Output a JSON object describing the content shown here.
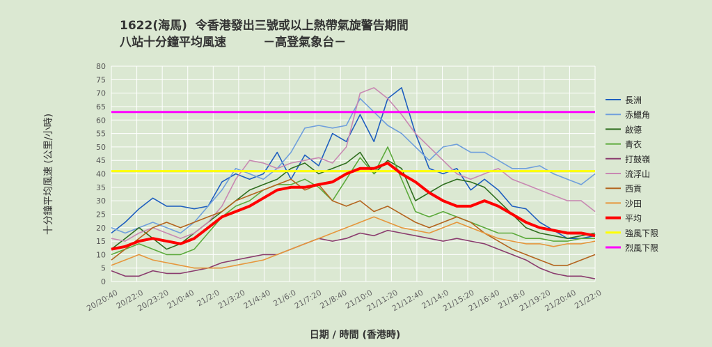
{
  "chart_data": {
    "type": "line",
    "title": "1622(海馬)  令香港發出三號或以上熱帶氣旋警告期間",
    "subtitle": "八站十分鐘平均風速         －高登氣象台－",
    "xlabel": "日期 / 時間 (香港時)",
    "ylabel": "十分鐘平均風速 (公里/小時)",
    "ylim": [
      0,
      80
    ],
    "yticks": [
      0,
      5,
      10,
      15,
      20,
      25,
      30,
      35,
      40,
      45,
      50,
      55,
      60,
      65,
      70,
      75,
      80
    ],
    "xticks": [
      "20/20:40",
      "20/22:0",
      "20/23:20",
      "21/0:40",
      "21/2:0",
      "21/3:20",
      "21/4:40",
      "21/6:0",
      "21/7:20",
      "21/8:40",
      "21/10:0",
      "21/11:20",
      "21/12:40",
      "21/14:0",
      "21/15:20",
      "21/16:40",
      "21/18:0",
      "21/19:20",
      "21/20:40",
      "21/22:0"
    ],
    "grid": true,
    "legend": "right",
    "series": [
      {
        "name": "長洲",
        "color": "#1f5fbf",
        "values": [
          18,
          22,
          27,
          31,
          28,
          28,
          27,
          28,
          37,
          40,
          38,
          40,
          48,
          38,
          47,
          43,
          55,
          52,
          62,
          52,
          68,
          72,
          55,
          42,
          40,
          42,
          34,
          38,
          34,
          28,
          27,
          22,
          19,
          16,
          16,
          17
        ]
      },
      {
        "name": "赤鱲角",
        "color": "#6f9fdc",
        "values": [
          20,
          18,
          20,
          22,
          20,
          18,
          22,
          28,
          34,
          42,
          40,
          38,
          42,
          48,
          57,
          58,
          57,
          58,
          68,
          63,
          58,
          55,
          50,
          45,
          50,
          51,
          48,
          48,
          45,
          42,
          42,
          43,
          40,
          38,
          36,
          40
        ]
      },
      {
        "name": "啟德",
        "color": "#2f6e1f",
        "values": [
          12,
          16,
          20,
          16,
          12,
          14,
          18,
          22,
          26,
          30,
          34,
          36,
          38,
          42,
          44,
          40,
          42,
          44,
          48,
          40,
          45,
          42,
          30,
          33,
          36,
          38,
          37,
          35,
          30,
          25,
          20,
          18,
          17,
          16,
          17,
          18
        ]
      },
      {
        "name": "青衣",
        "color": "#5caa3c",
        "values": [
          10,
          12,
          14,
          12,
          10,
          10,
          12,
          18,
          24,
          28,
          30,
          34,
          36,
          36,
          38,
          35,
          30,
          38,
          46,
          40,
          50,
          38,
          26,
          24,
          26,
          24,
          22,
          20,
          18,
          18,
          16,
          16,
          15,
          15,
          16,
          16
        ]
      },
      {
        "name": "打鼓嶺",
        "color": "#8a3c6e",
        "values": [
          4,
          2,
          2,
          4,
          3,
          3,
          4,
          5,
          7,
          8,
          9,
          10,
          10,
          12,
          14,
          16,
          15,
          16,
          18,
          17,
          19,
          18,
          17,
          16,
          15,
          16,
          15,
          14,
          12,
          10,
          8,
          5,
          3,
          2,
          2,
          1
        ]
      },
      {
        "name": "流浮山",
        "color": "#c888b2",
        "values": [
          16,
          15,
          18,
          20,
          18,
          16,
          18,
          22,
          28,
          38,
          45,
          44,
          42,
          44,
          45,
          46,
          44,
          50,
          70,
          72,
          68,
          62,
          55,
          50,
          45,
          40,
          38,
          40,
          42,
          38,
          36,
          34,
          32,
          30,
          30,
          26
        ]
      },
      {
        "name": "西貢",
        "color": "#b4641e",
        "values": [
          8,
          12,
          16,
          20,
          22,
          20,
          22,
          24,
          26,
          30,
          32,
          34,
          36,
          38,
          34,
          36,
          30,
          28,
          30,
          26,
          28,
          25,
          22,
          20,
          22,
          24,
          22,
          18,
          15,
          12,
          10,
          8,
          6,
          6,
          8,
          10
        ]
      },
      {
        "name": "沙田",
        "color": "#e6963c",
        "values": [
          6,
          8,
          10,
          8,
          7,
          6,
          5,
          5,
          5,
          6,
          7,
          8,
          10,
          12,
          14,
          16,
          18,
          20,
          22,
          24,
          22,
          20,
          19,
          18,
          20,
          22,
          20,
          18,
          16,
          15,
          14,
          14,
          13,
          14,
          14,
          15
        ]
      },
      {
        "name": "平均",
        "color": "#ff0000",
        "values": [
          12,
          13,
          15,
          16,
          15,
          14,
          16,
          20,
          24,
          26,
          28,
          31,
          34,
          35,
          35,
          36,
          37,
          40,
          42,
          42,
          44,
          40,
          37,
          33,
          30,
          28,
          28,
          30,
          28,
          25,
          22,
          20,
          19,
          18,
          18,
          17
        ]
      },
      {
        "name": "強風下限",
        "color": "#ffff00",
        "values": [
          41,
          41
        ]
      },
      {
        "name": "烈風下限",
        "color": "#ff00ff",
        "values": [
          63,
          63
        ]
      }
    ]
  }
}
